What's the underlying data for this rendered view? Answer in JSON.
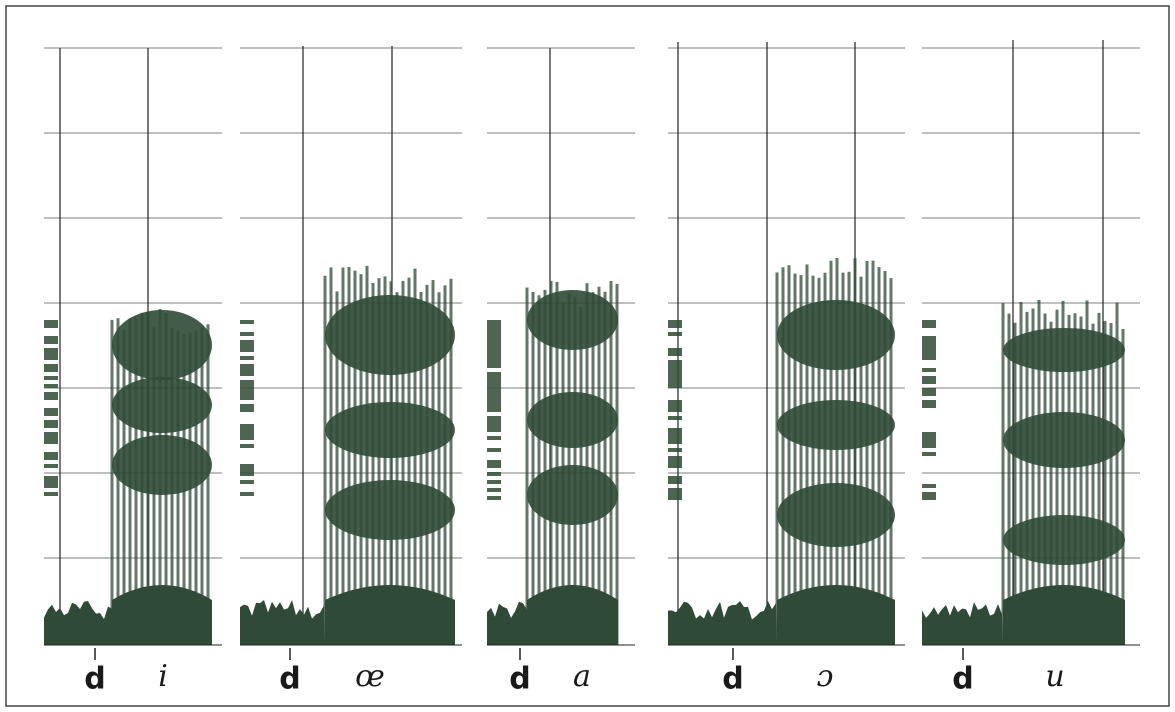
{
  "panels": [
    {
      "consonant": "d",
      "vowel": "i"
    },
    {
      "consonant": "d",
      "vowel": "œ"
    },
    {
      "consonant": "d",
      "vowel": "a"
    },
    {
      "consonant": "d",
      "vowel": "ɔ"
    },
    {
      "consonant": "d",
      "vowel": "u"
    }
  ]
}
